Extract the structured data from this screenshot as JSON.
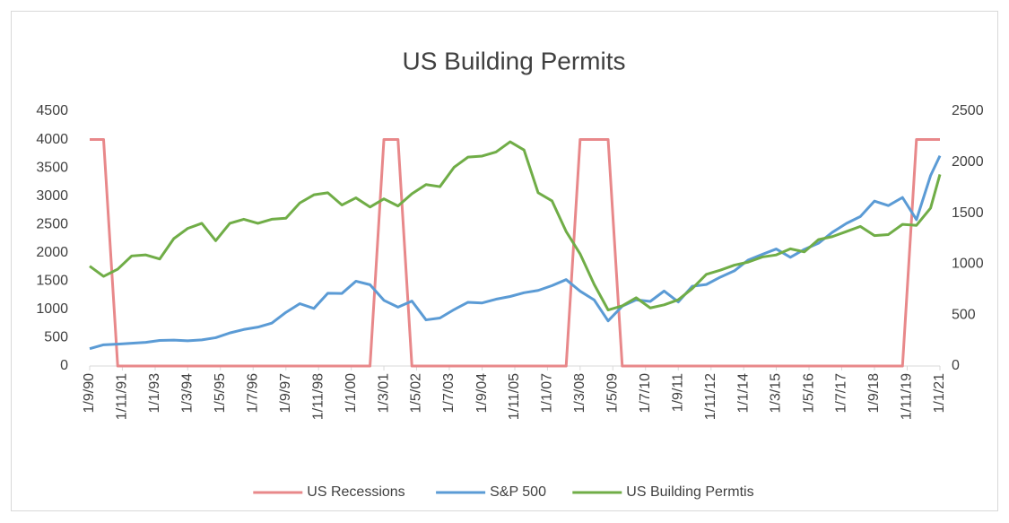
{
  "chart_data": {
    "type": "line",
    "title": "US Building Permits",
    "x": [
      "1990-09-01",
      "1991-03-01",
      "1991-09-01",
      "1992-03-01",
      "1992-09-01",
      "1993-03-01",
      "1993-09-01",
      "1994-03-01",
      "1994-09-01",
      "1995-03-01",
      "1995-09-01",
      "1996-03-01",
      "1996-09-01",
      "1997-03-01",
      "1997-09-01",
      "1998-03-01",
      "1998-09-01",
      "1999-03-01",
      "1999-09-01",
      "2000-03-01",
      "2000-09-01",
      "2001-03-01",
      "2001-09-01",
      "2002-03-01",
      "2002-09-01",
      "2003-03-01",
      "2003-09-01",
      "2004-03-01",
      "2004-09-01",
      "2005-03-01",
      "2005-09-01",
      "2006-03-01",
      "2006-09-01",
      "2007-03-01",
      "2007-09-01",
      "2008-03-01",
      "2008-09-01",
      "2009-03-01",
      "2009-09-01",
      "2010-03-01",
      "2010-09-01",
      "2011-03-01",
      "2011-09-01",
      "2012-03-01",
      "2012-09-01",
      "2013-03-01",
      "2013-09-01",
      "2014-03-01",
      "2014-09-01",
      "2015-03-01",
      "2015-09-01",
      "2016-03-01",
      "2016-09-01",
      "2017-03-01",
      "2017-09-01",
      "2018-03-01",
      "2018-09-01",
      "2019-03-01",
      "2019-09-01",
      "2020-03-01",
      "2020-09-01",
      "2021-01-01"
    ],
    "series": [
      {
        "name": "US Recessions",
        "color": "#e8888a",
        "values": [
          4000,
          4000,
          0,
          0,
          0,
          0,
          0,
          0,
          0,
          0,
          0,
          0,
          0,
          0,
          0,
          0,
          0,
          0,
          0,
          0,
          0,
          4000,
          4000,
          0,
          0,
          0,
          0,
          0,
          0,
          0,
          0,
          0,
          0,
          0,
          0,
          4000,
          4000,
          4000,
          0,
          0,
          0,
          0,
          0,
          0,
          0,
          0,
          0,
          0,
          0,
          0,
          0,
          0,
          0,
          0,
          0,
          0,
          0,
          0,
          0,
          4000,
          4000,
          4000
        ]
      },
      {
        "name": "S&P 500",
        "color": "#5b9bd5",
        "values": [
          306,
          375,
          387,
          403,
          418,
          451,
          458,
          445,
          462,
          500,
          584,
          645,
          687,
          757,
          947,
          1101,
          1017,
          1286,
          1282,
          1498,
          1436,
          1160,
          1040,
          1147,
          815,
          848,
          996,
          1126,
          1114,
          1180,
          1228,
          1294,
          1335,
          1420,
          1526,
          1322,
          1166,
          797,
          1057,
          1169,
          1141,
          1325,
          1131,
          1408,
          1440,
          1569,
          1681,
          1872,
          1972,
          2067,
          1920,
          2060,
          2168,
          2362,
          2519,
          2640,
          2913,
          2834,
          2977,
          2585,
          3363,
          3714
        ]
      },
      {
        "name": "US Building Permtis",
        "color": "#70ad47",
        "axis": "y2",
        "values": [
          980,
          880,
          950,
          1080,
          1090,
          1050,
          1250,
          1350,
          1400,
          1230,
          1400,
          1440,
          1400,
          1440,
          1450,
          1600,
          1680,
          1700,
          1580,
          1650,
          1560,
          1640,
          1570,
          1690,
          1780,
          1760,
          1950,
          2050,
          2060,
          2100,
          2200,
          2120,
          1700,
          1620,
          1320,
          1100,
          800,
          550,
          590,
          670,
          570,
          600,
          650,
          760,
          900,
          940,
          990,
          1020,
          1070,
          1090,
          1150,
          1120,
          1240,
          1270,
          1320,
          1370,
          1280,
          1290,
          1390,
          1380,
          1550,
          1880
        ]
      }
    ],
    "xlim": [
      "1990-09-01",
      "2021-01-01"
    ],
    "xticks": [
      {
        "value": "1990-09-01",
        "label": "1/9/90"
      },
      {
        "value": "1991-11-01",
        "label": "1/11/91"
      },
      {
        "value": "1993-01-01",
        "label": "1/1/93"
      },
      {
        "value": "1994-03-01",
        "label": "1/3/94"
      },
      {
        "value": "1995-05-01",
        "label": "1/5/95"
      },
      {
        "value": "1996-07-01",
        "label": "1/7/96"
      },
      {
        "value": "1997-09-01",
        "label": "1/9/97"
      },
      {
        "value": "1998-11-01",
        "label": "1/11/98"
      },
      {
        "value": "2000-01-01",
        "label": "1/1/00"
      },
      {
        "value": "2001-03-01",
        "label": "1/3/01"
      },
      {
        "value": "2002-05-01",
        "label": "1/5/02"
      },
      {
        "value": "2003-07-01",
        "label": "1/7/03"
      },
      {
        "value": "2004-09-01",
        "label": "1/9/04"
      },
      {
        "value": "2005-11-01",
        "label": "1/11/05"
      },
      {
        "value": "2007-01-01",
        "label": "1/1/07"
      },
      {
        "value": "2008-03-01",
        "label": "1/3/08"
      },
      {
        "value": "2009-05-01",
        "label": "1/5/09"
      },
      {
        "value": "2010-07-01",
        "label": "1/7/10"
      },
      {
        "value": "2011-09-01",
        "label": "1/9/11"
      },
      {
        "value": "2012-11-01",
        "label": "1/11/12"
      },
      {
        "value": "2014-01-01",
        "label": "1/1/14"
      },
      {
        "value": "2015-03-01",
        "label": "1/3/15"
      },
      {
        "value": "2016-05-01",
        "label": "1/5/16"
      },
      {
        "value": "2017-07-01",
        "label": "1/7/17"
      },
      {
        "value": "2018-09-01",
        "label": "1/9/18"
      },
      {
        "value": "2019-11-01",
        "label": "1/11/19"
      },
      {
        "value": "2021-01-01",
        "label": "1/1/21"
      }
    ],
    "ylim": [
      0,
      4500
    ],
    "yticks": [
      0,
      500,
      1000,
      1500,
      2000,
      2500,
      3000,
      3500,
      4000,
      4500
    ],
    "y2lim": [
      0,
      2500
    ],
    "y2ticks": [
      0,
      500,
      1000,
      1500,
      2000,
      2500
    ],
    "legend": "bottom",
    "grid": false
  }
}
